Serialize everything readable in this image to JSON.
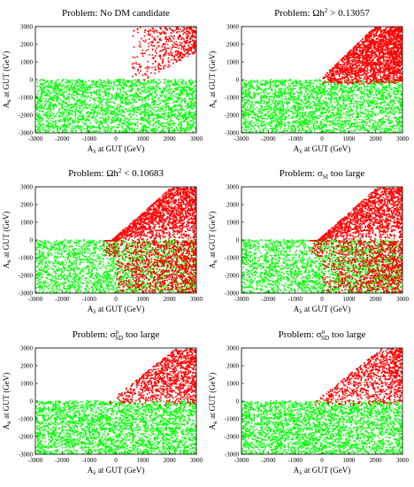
{
  "chart_data": [
    {
      "type": "scatter",
      "title": "Problem: No DM candidate",
      "title_parts": [
        "Problem: No DM candidate"
      ],
      "xlabel": "A_λ at GUT (GeV)",
      "ylabel": "A_κ at GUT (GeV)",
      "xlim": [
        -3000,
        3000
      ],
      "ylim": [
        -3000,
        3000
      ],
      "xticks": [
        "-3000",
        "-2000",
        "-1000",
        "0",
        "1000",
        "2000",
        "3000"
      ],
      "yticks": [
        "3000",
        "2000",
        "1000",
        "0",
        "-1000",
        "-2000",
        "-3000"
      ],
      "grid": false,
      "legend": "none",
      "series": [
        {
          "color": "#00ff00",
          "region": "A_λ -3000..3000, A_κ -3000..~0",
          "approx_points": 2600
        },
        {
          "color": "#ff0000",
          "region": "upper-right wedge, A_λ ≳ 500, A_κ ≳ 0 (sparse)",
          "approx_points": 500
        }
      ]
    },
    {
      "type": "scatter",
      "title": "Problem: Ωh² > 0.13057",
      "title_parts": [
        "Problem: Ωh",
        "2",
        " > 0.13057"
      ],
      "xlabel": "A_λ at GUT (GeV)",
      "ylabel": "A_κ at GUT (GeV)",
      "xlim": [
        -3000,
        3000
      ],
      "ylim": [
        -3000,
        3000
      ],
      "xticks": [
        "-3000",
        "-2000",
        "-1000",
        "0",
        "1000",
        "2000",
        "3000"
      ],
      "yticks": [
        "3000",
        "2000",
        "1000",
        "0",
        "-1000",
        "-2000",
        "-3000"
      ],
      "grid": false,
      "legend": "none",
      "series": [
        {
          "color": "#00ff00",
          "region": "A_λ -3000..3000, A_κ -3000..~0",
          "approx_points": 2600
        },
        {
          "color": "#ff0000",
          "region": "upper-right wedge, A_λ ≳ 0, A_κ ≳ 0 (dense)",
          "approx_points": 2200
        }
      ]
    },
    {
      "type": "scatter",
      "title": "Problem: Ωh² < 0.10683",
      "title_parts": [
        "Problem: Ωh",
        "2",
        " < 0.10683"
      ],
      "xlabel": "A_λ at GUT (GeV)",
      "ylabel": "A_κ at GUT (GeV)",
      "xlim": [
        -3000,
        3000
      ],
      "ylim": [
        -3000,
        3000
      ],
      "xticks": [
        "-3000",
        "-2000",
        "-1000",
        "0",
        "1000",
        "2000",
        "3000"
      ],
      "yticks": [
        "3000",
        "2000",
        "1000",
        "0",
        "-1000",
        "-2000",
        "-3000"
      ],
      "grid": false,
      "legend": "none",
      "series": [
        {
          "color": "#00ff00",
          "region": "A_λ -3000..3000, A_κ -3000..~0",
          "approx_points": 2200
        },
        {
          "color": "#ff0000",
          "region": "upper-right wedge and lower-right, A_λ ≳ -500 (dense)",
          "approx_points": 2800
        }
      ]
    },
    {
      "type": "scatter",
      "title": "Problem: σSI too large",
      "title_parts": [
        "Problem: σ",
        "SI",
        " too large"
      ],
      "xlabel": "A_λ at GUT (GeV)",
      "ylabel": "A_κ at GUT (GeV)",
      "xlim": [
        -3000,
        3000
      ],
      "ylim": [
        -3000,
        3000
      ],
      "xticks": [
        "-3000",
        "-2000",
        "-1000",
        "0",
        "1000",
        "2000",
        "3000"
      ],
      "yticks": [
        "3000",
        "2000",
        "1000",
        "0",
        "-1000",
        "-2000",
        "-3000"
      ],
      "grid": false,
      "legend": "none",
      "series": [
        {
          "color": "#00ff00",
          "region": "A_λ -3000..3000, A_κ -3000..~0",
          "approx_points": 2300
        },
        {
          "color": "#ff0000",
          "region": "upper-right wedge and lower-right, A_λ ≳ -500 (dense)",
          "approx_points": 2600
        }
      ]
    },
    {
      "type": "scatter",
      "title": "Problem: σpSD too large",
      "title_parts": [
        "Problem: σ",
        "p",
        "SD",
        " too large"
      ],
      "xlabel": "A_λ at GUT (GeV)",
      "ylabel": "A_κ at GUT (GeV)",
      "xlim": [
        -3000,
        3000
      ],
      "ylim": [
        -3000,
        3000
      ],
      "xticks": [
        "-3000",
        "-2000",
        "-1000",
        "0",
        "1000",
        "2000",
        "3000"
      ],
      "yticks": [
        "3000",
        "2000",
        "1000",
        "0",
        "-1000",
        "-2000",
        "-3000"
      ],
      "grid": false,
      "legend": "none",
      "series": [
        {
          "color": "#00ff00",
          "region": "A_λ -3000..3000, A_κ -3000..~0",
          "approx_points": 2700
        },
        {
          "color": "#ff0000",
          "region": "upper-right wedge, A_λ ≳ 0, A_κ ≳ 0",
          "approx_points": 1100
        }
      ]
    },
    {
      "type": "scatter",
      "title": "Problem: σnSD too large",
      "title_parts": [
        "Problem: σ",
        "n",
        "SD",
        " too large"
      ],
      "xlabel": "A_λ at GUT (GeV)",
      "ylabel": "A_κ at GUT (GeV)",
      "xlim": [
        -3000,
        3000
      ],
      "ylim": [
        -3000,
        3000
      ],
      "xticks": [
        "-3000",
        "-2000",
        "-1000",
        "0",
        "1000",
        "2000",
        "3000"
      ],
      "yticks": [
        "3000",
        "2000",
        "1000",
        "0",
        "-1000",
        "-2000",
        "-3000"
      ],
      "grid": false,
      "legend": "none",
      "series": [
        {
          "color": "#00ff00",
          "region": "A_λ -3000..3000, A_κ -3000..~0",
          "approx_points": 2700
        },
        {
          "color": "#ff0000",
          "region": "upper-right wedge, A_λ ≳ 0, A_κ ≳ 0",
          "approx_points": 1000
        }
      ]
    }
  ]
}
